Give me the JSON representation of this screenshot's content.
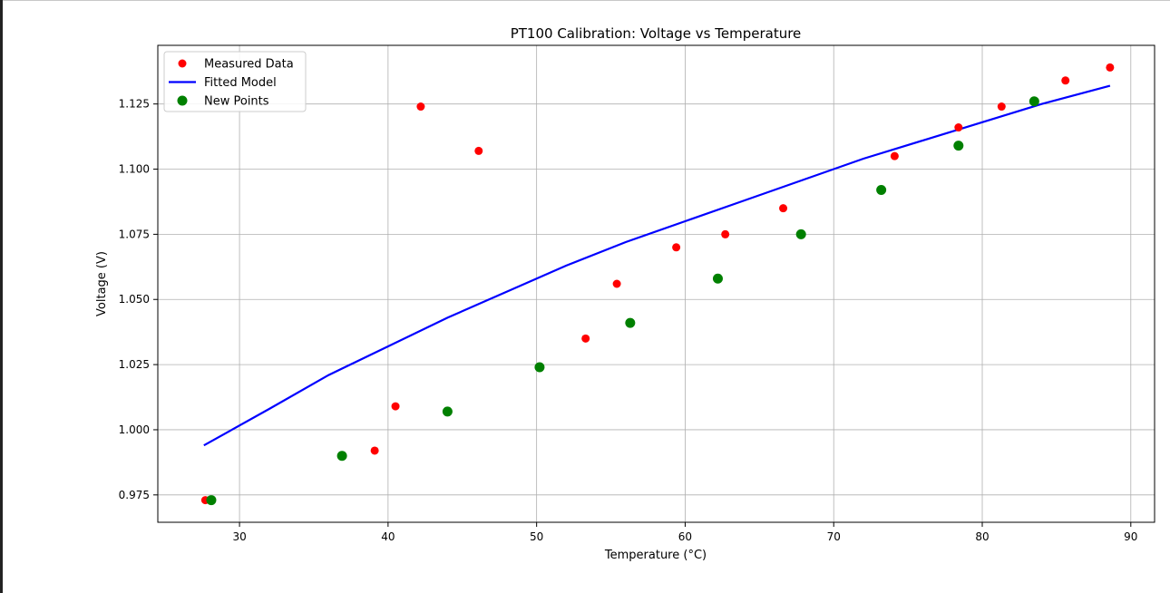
{
  "chart_data": {
    "type": "scatter",
    "title": "PT100 Calibration: Voltage vs Temperature",
    "xlabel": "Temperature (°C)",
    "ylabel": "Voltage (V)",
    "xlim": [
      24.5,
      91.6
    ],
    "ylim": [
      0.9645,
      1.1475
    ],
    "xticks": [
      30,
      40,
      50,
      60,
      70,
      80,
      90
    ],
    "xtick_labels": [
      "30",
      "40",
      "50",
      "60",
      "70",
      "80",
      "90"
    ],
    "yticks": [
      0.975,
      1.0,
      1.025,
      1.05,
      1.075,
      1.1,
      1.125
    ],
    "ytick_labels": [
      "0.975",
      "1.000",
      "1.025",
      "1.050",
      "1.075",
      "1.100",
      "1.125"
    ],
    "grid": true,
    "legend_position": "top-left",
    "series": [
      {
        "name": "Measured Data",
        "kind": "scatter",
        "color": "#ff0000",
        "x": [
          27.7,
          39.1,
          40.5,
          42.2,
          46.1,
          53.3,
          55.4,
          59.4,
          62.7,
          66.6,
          74.1,
          78.4,
          81.3,
          85.6,
          88.6
        ],
        "y": [
          0.973,
          0.992,
          1.009,
          1.124,
          1.107,
          1.035,
          1.056,
          1.07,
          1.075,
          1.085,
          1.105,
          1.116,
          1.124,
          1.134,
          1.139
        ]
      },
      {
        "name": "Fitted Model",
        "kind": "line",
        "color": "#0000ff",
        "x": [
          27.6,
          32.0,
          36.0,
          40.0,
          44.0,
          48.0,
          52.0,
          56.0,
          60.0,
          64.0,
          68.0,
          72.0,
          76.0,
          80.0,
          84.0,
          88.6
        ],
        "y": [
          0.994,
          1.008,
          1.021,
          1.032,
          1.043,
          1.053,
          1.063,
          1.072,
          1.08,
          1.088,
          1.096,
          1.104,
          1.111,
          1.118,
          1.125,
          1.132
        ]
      },
      {
        "name": "New Points",
        "kind": "scatter",
        "color": "#008000",
        "x": [
          28.1,
          36.9,
          44.0,
          50.2,
          56.3,
          62.2,
          67.8,
          73.2,
          78.4,
          83.5
        ],
        "y": [
          0.973,
          0.99,
          1.007,
          1.024,
          1.041,
          1.058,
          1.075,
          1.092,
          1.109,
          1.126
        ]
      }
    ]
  }
}
